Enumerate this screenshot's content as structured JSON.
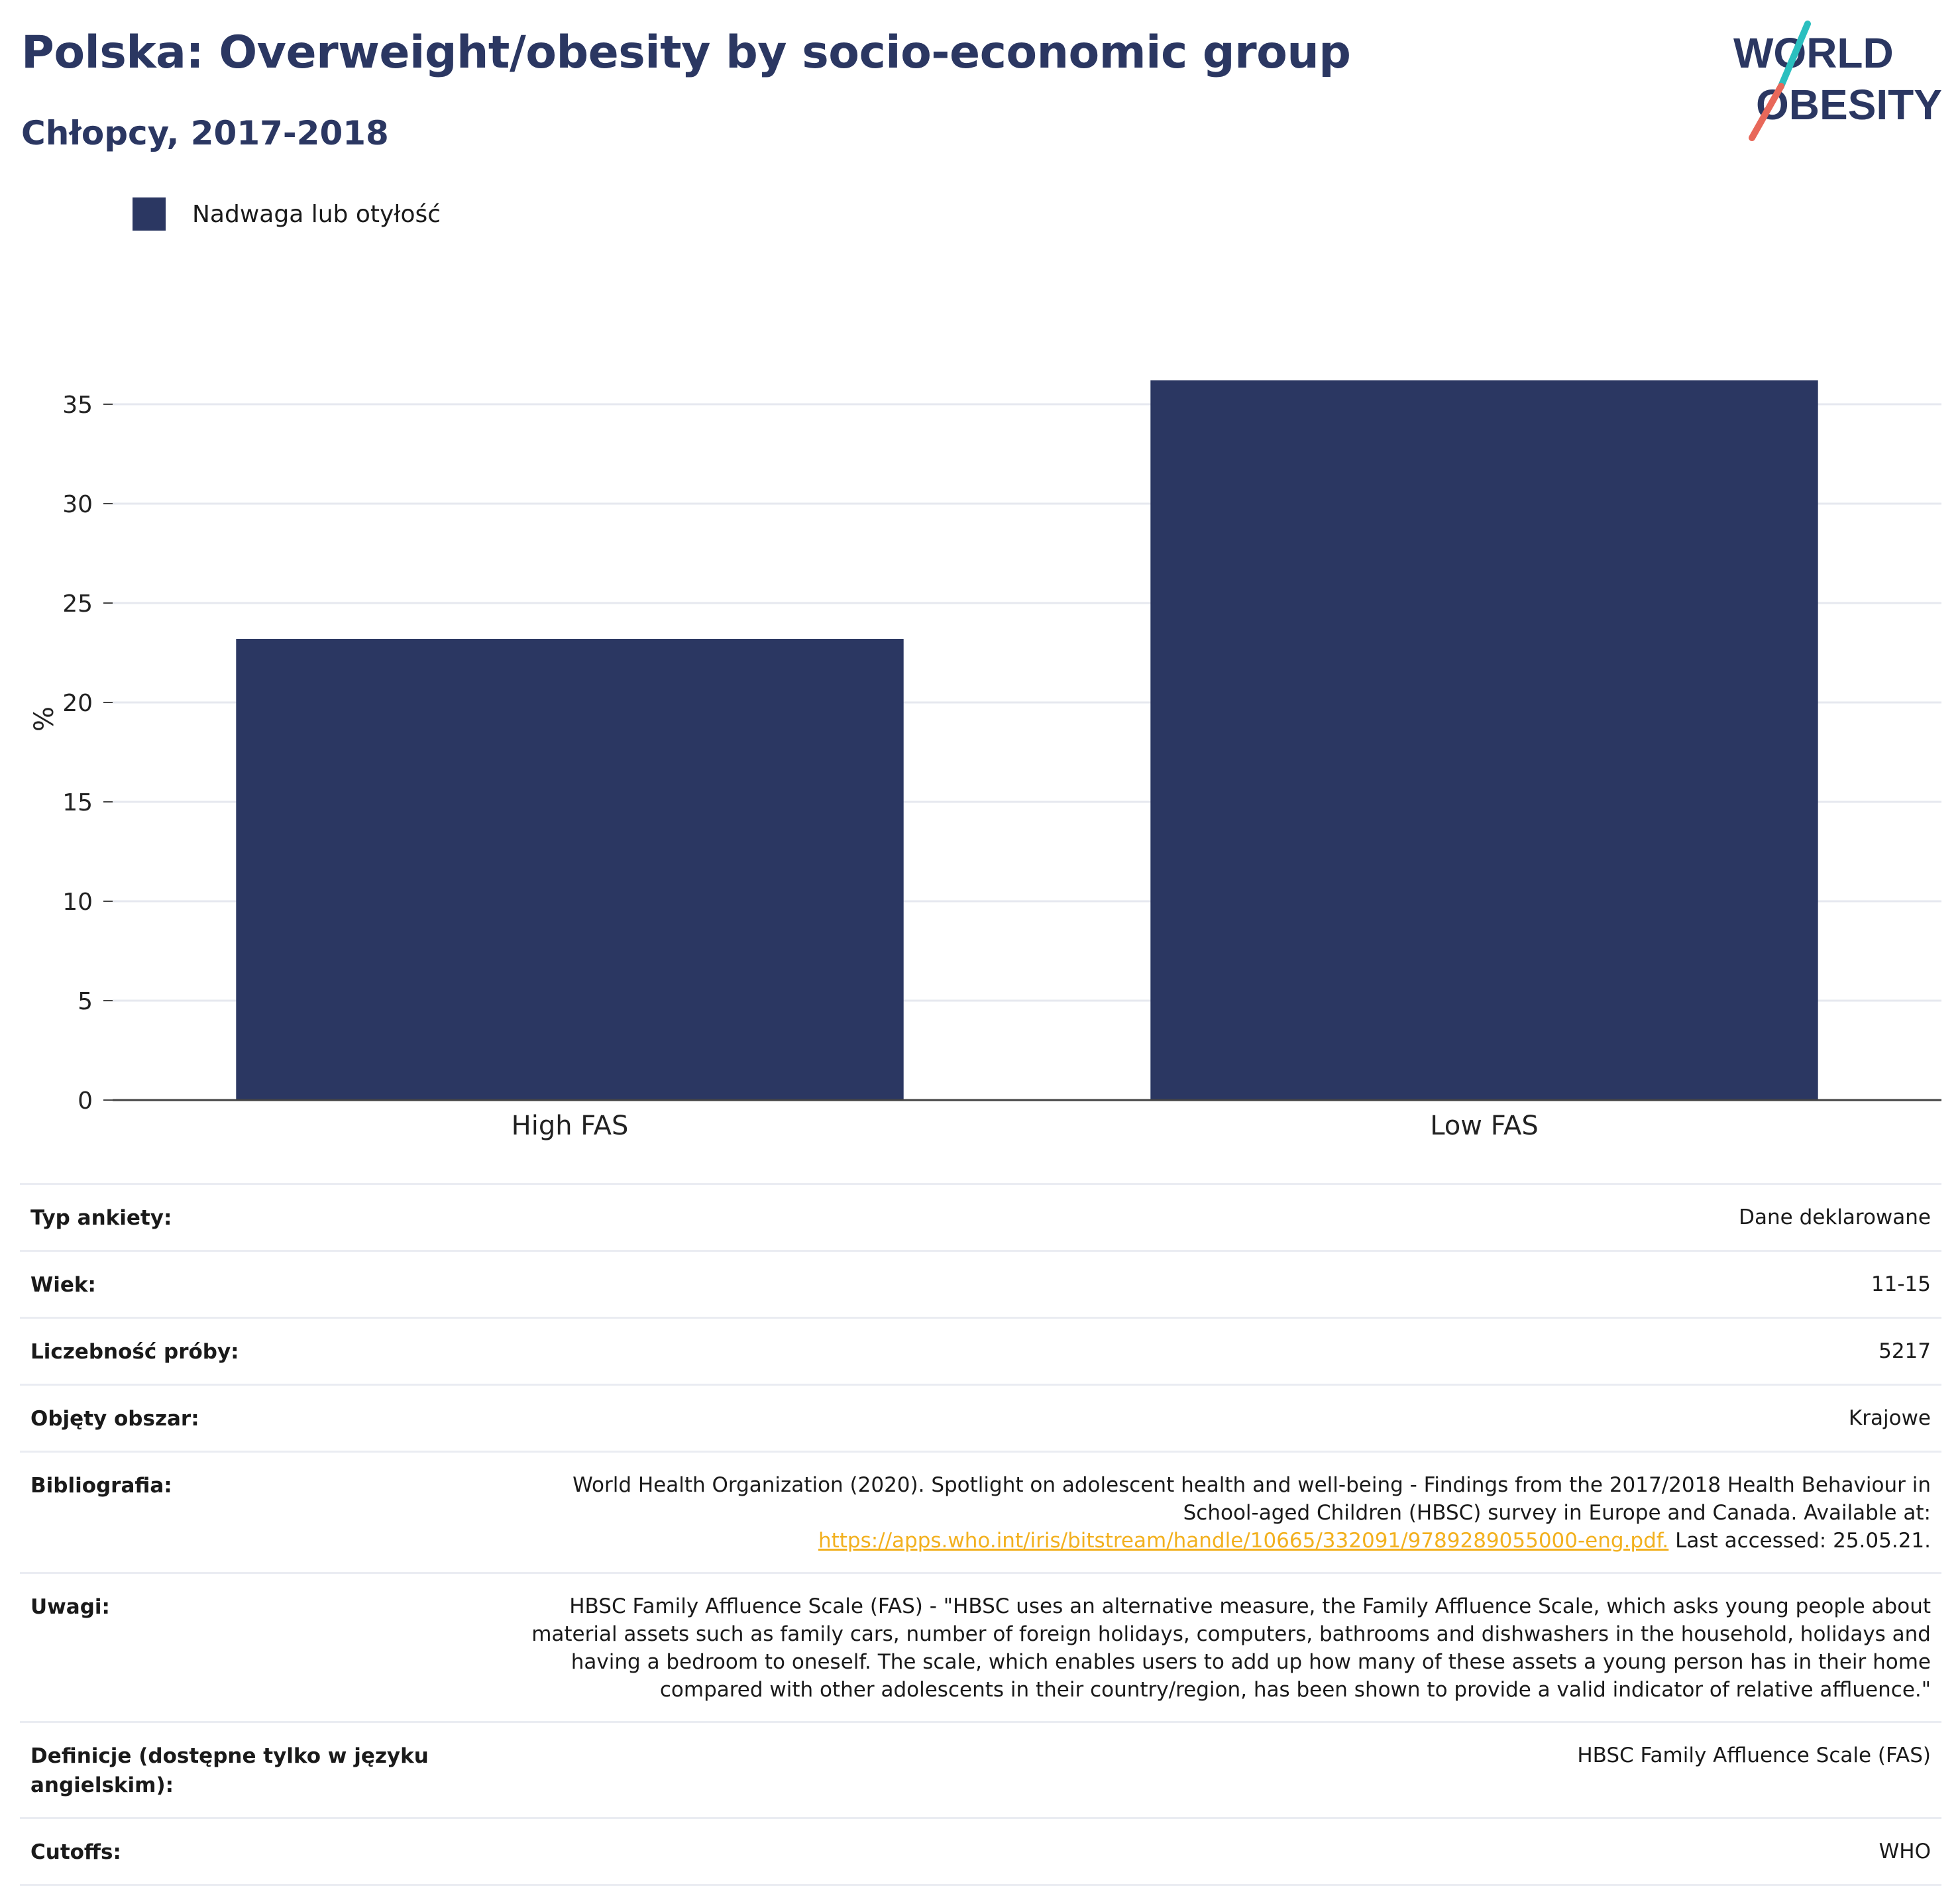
{
  "header": {
    "title": "Polska: Overweight/obesity by socio-economic group",
    "subtitle": "Chłopcy, 2017-2018"
  },
  "logo": {
    "line1": "WORLD",
    "line2": "OBESITY",
    "colors": {
      "text": "#2b3762",
      "slash_top": "#2bbfbf",
      "slash_bottom": "#e8685a"
    }
  },
  "legend": {
    "label": "Nadwaga lub otyłość",
    "color": "#2b3762"
  },
  "chart_data": {
    "type": "bar",
    "categories": [
      "High FAS",
      "Low FAS"
    ],
    "series": [
      {
        "name": "Nadwaga lub otyłość",
        "values": [
          23.2,
          36.2
        ]
      }
    ],
    "ylabel": "%",
    "xlabel": "",
    "ylim": [
      0,
      38
    ],
    "yticks": [
      0,
      5,
      10,
      15,
      20,
      25,
      30,
      35
    ],
    "grid": true,
    "bar_color": "#2b3762"
  },
  "meta": {
    "survey_type": {
      "label": "Typ ankiety:",
      "value": "Dane deklarowane"
    },
    "age": {
      "label": "Wiek:",
      "value": "11-15"
    },
    "sample_size": {
      "label": "Liczebność próby:",
      "value": "5217"
    },
    "area": {
      "label": "Objęty obszar:",
      "value": "Krajowe"
    },
    "bibliography": {
      "label": "Bibliografia:",
      "text": "World Health Organization (2020). Spotlight on adolescent health and well-being - Findings from the 2017/2018 Health Behaviour in School-aged Children (HBSC) survey in Europe and Canada. Available at:",
      "link": "https://apps.who.int/iris/bitstream/handle/10665/332091/9789289055000-eng.pdf.",
      "suffix": "Last accessed: 25.05.21."
    },
    "notes": {
      "label": "Uwagi:",
      "value": "HBSC Family Affluence Scale (FAS) - \"HBSC uses an alternative measure, the Family Affluence Scale, which asks young people about material assets such as family cars, number of foreign holidays, computers, bathrooms and dishwashers in the household, holidays and having a bedroom to oneself. The scale, which enables users to add up how many of these assets a young person has in their home compared with other adolescents in their country/region, has been shown to provide a valid indicator of relative affluence.\""
    },
    "definitions": {
      "label": "Definicje (dostępne tylko w języku angielskim):",
      "value": "HBSC Family Affluence Scale (FAS)"
    },
    "cutoffs": {
      "label": "Cutoffs:",
      "value": "WHO"
    }
  }
}
